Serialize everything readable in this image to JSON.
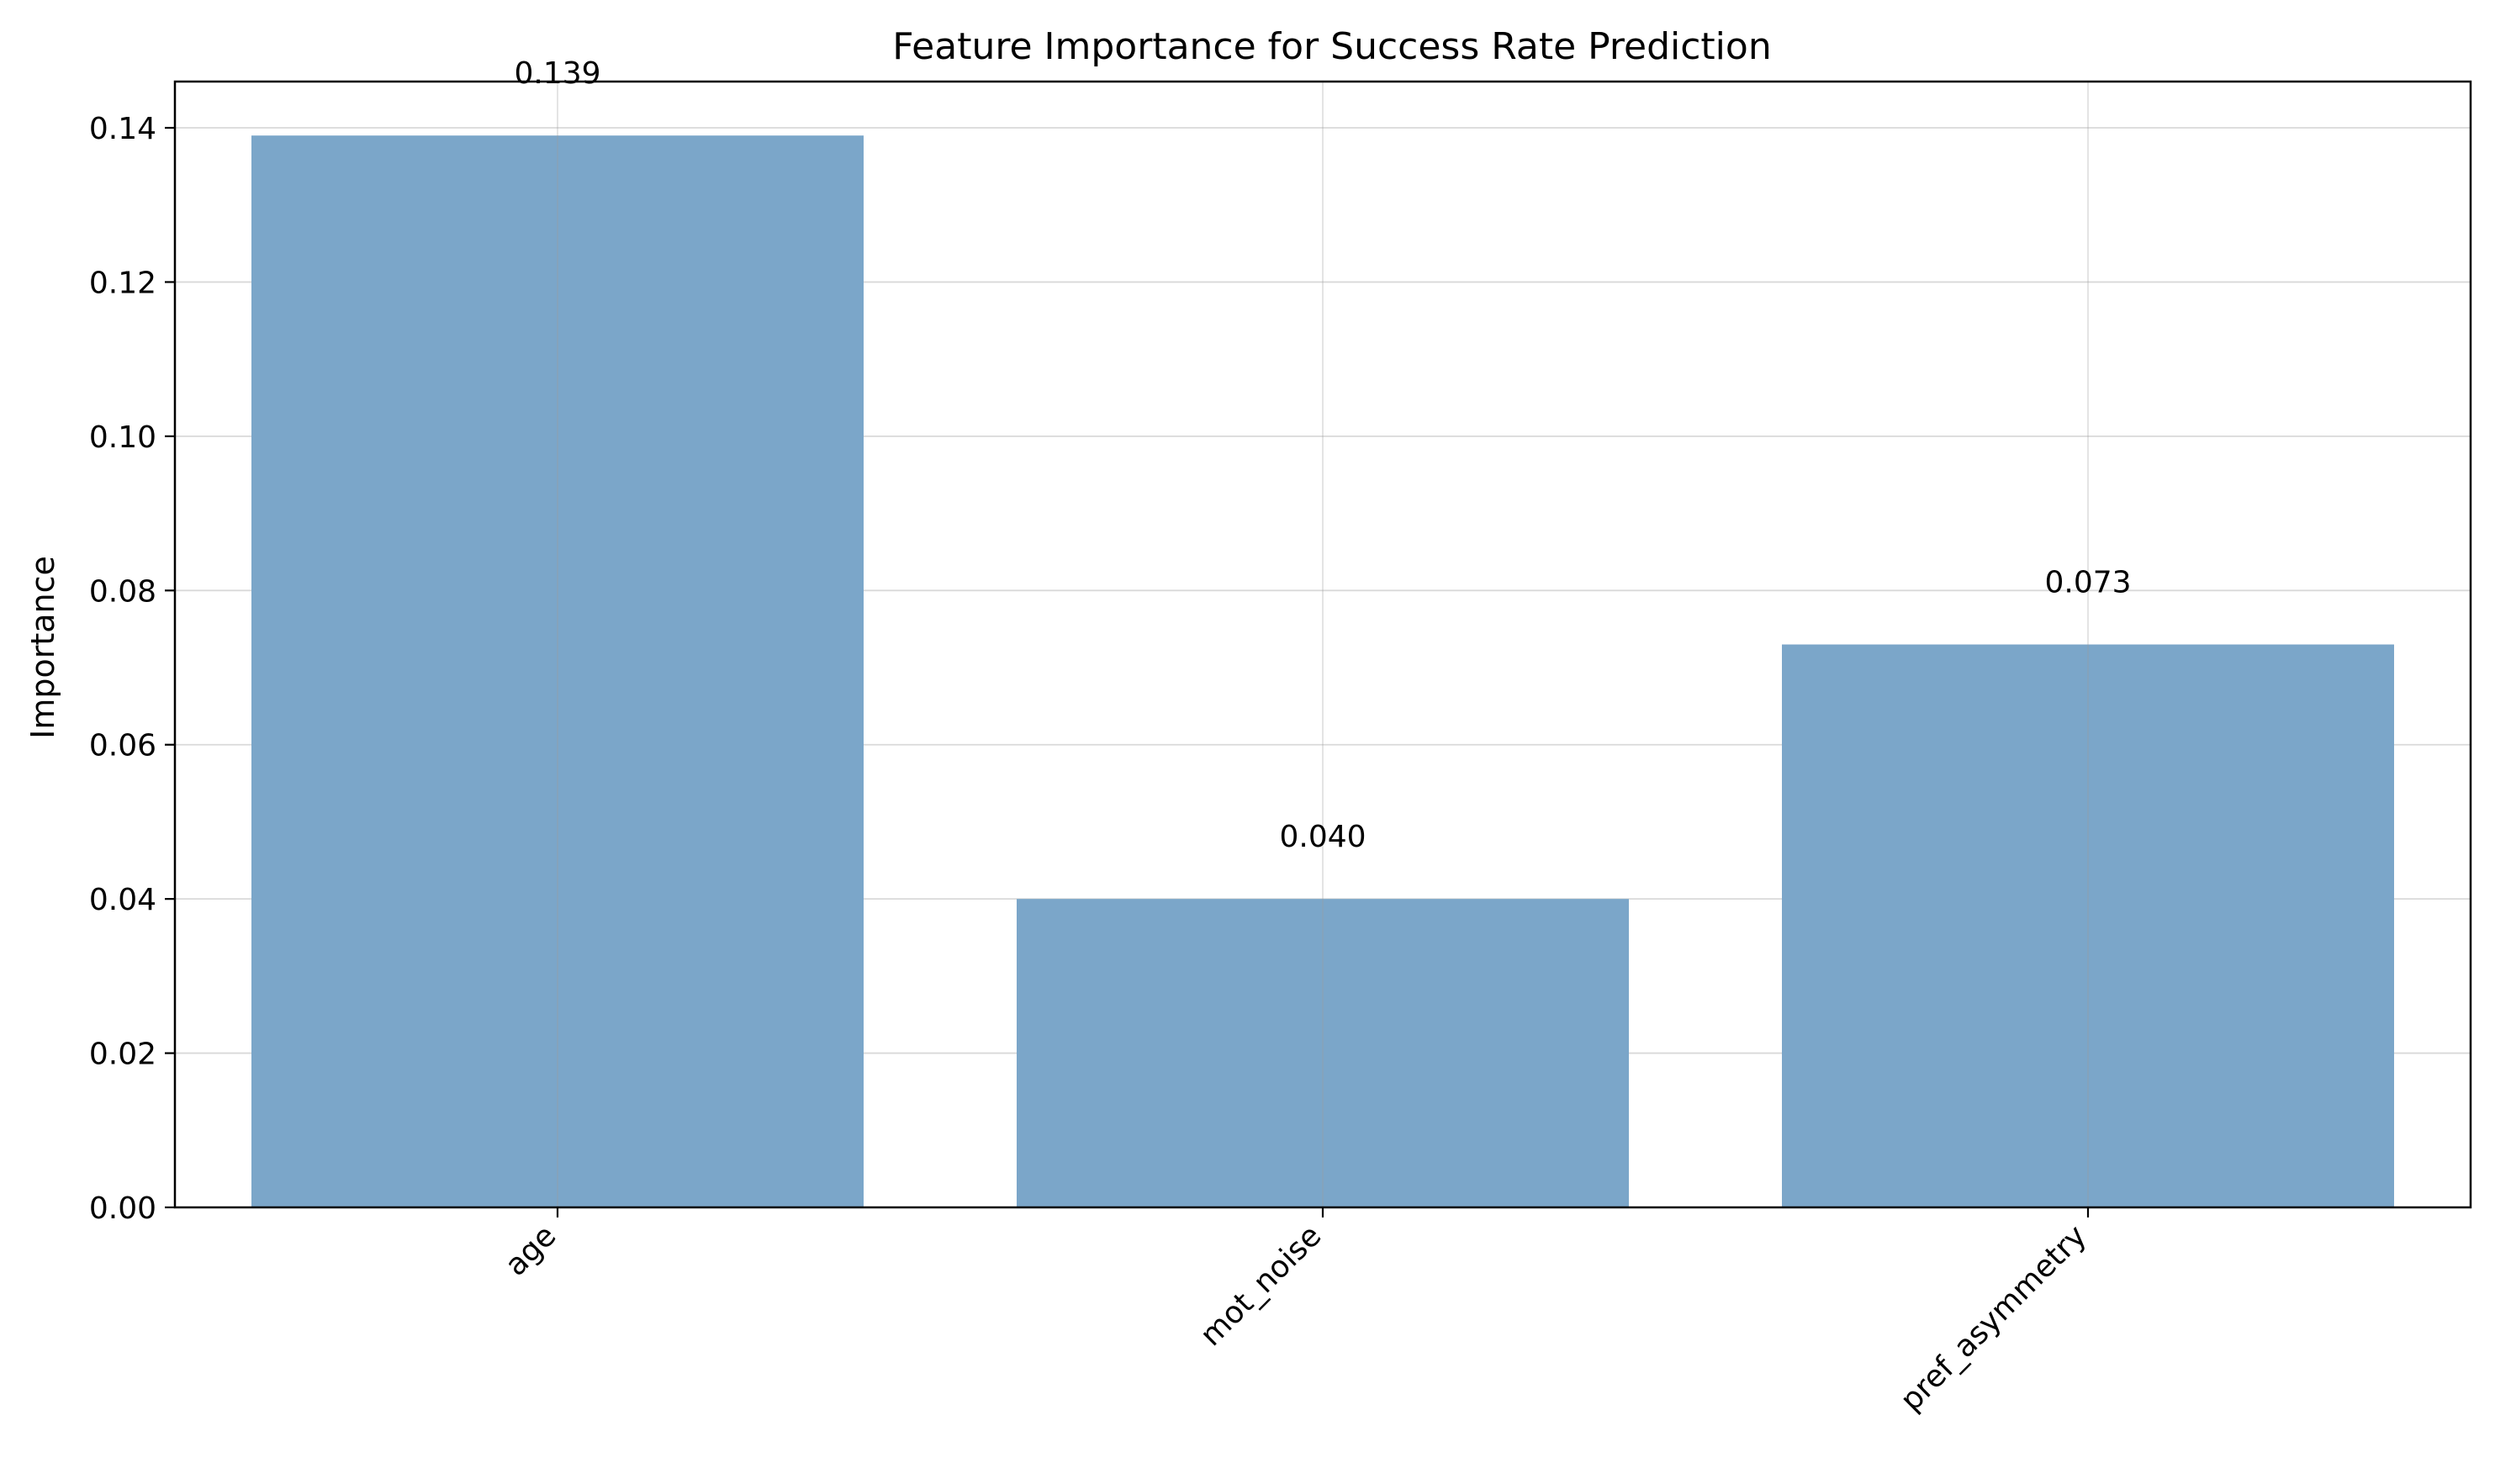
{
  "chart_data": {
    "type": "bar",
    "title": "Feature Importance for Success Rate Prediction",
    "xlabel": "",
    "ylabel": "Importance",
    "categories": [
      "age",
      "mot_noise",
      "pref_asymmetry"
    ],
    "values": [
      0.139,
      0.04,
      0.073
    ],
    "value_labels": [
      "0.139",
      "0.040",
      "0.073"
    ],
    "ylim": [
      0,
      0.146
    ],
    "yticks": [
      0.0,
      0.02,
      0.04,
      0.06,
      0.08,
      0.1,
      0.12,
      0.14
    ],
    "ytick_labels": [
      "0.00",
      "0.02",
      "0.04",
      "0.06",
      "0.08",
      "0.10",
      "0.12",
      "0.14"
    ],
    "grid": true,
    "bar_color": "#7ba6c9"
  }
}
